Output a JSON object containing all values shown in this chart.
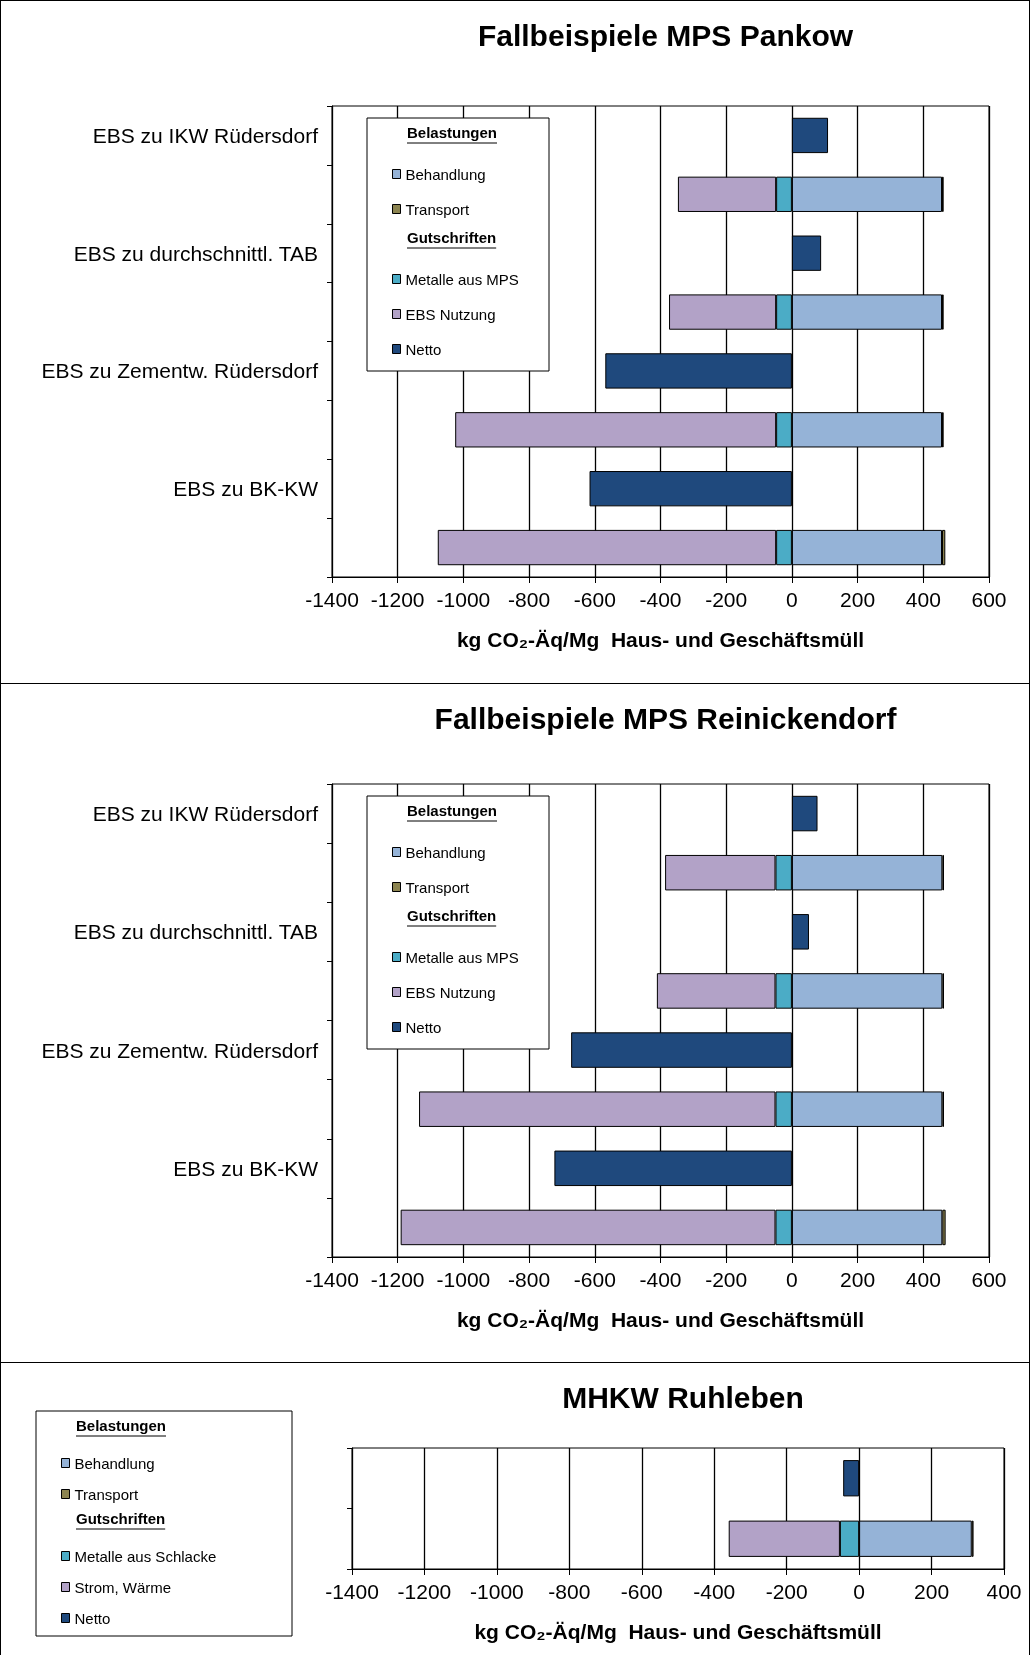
{
  "chart_data": [
    {
      "type": "bar",
      "title": "Fallbeispiele MPS Pankow",
      "xlabel": "kg CO₂-Äq/Mg  Haus- und Geschäftsmüll",
      "orientation": "horizontal",
      "stacked": true,
      "grid": "x",
      "legend": "top left",
      "annotations": [
        "Belastungen",
        "Gutschriften"
      ],
      "categories": [
        "EBS zu IKW Rüdersdorf",
        null,
        "EBS zu durchschnittl. TAB",
        null,
        "EBS zu Zementw. Rüdersdorf",
        null,
        "EBS zu BK-KW",
        null
      ],
      "xlim": [
        -1400,
        600
      ],
      "xticks": [
        -1400,
        -1200,
        -1000,
        -800,
        -600,
        -400,
        -200,
        0,
        200,
        400,
        600
      ],
      "series": [
        {
          "name": "Behandlung",
          "color": "#95b3d7",
          "values": [
            null,
            457,
            null,
            457,
            null,
            457,
            null,
            457
          ]
        },
        {
          "name": "Transport",
          "color": "#8c8450",
          "values": [
            null,
            5,
            null,
            5,
            null,
            5,
            null,
            10
          ]
        },
        {
          "name": "Metalle aus MPS",
          "color": "#4bacc6",
          "values": [
            null,
            -48,
            null,
            -48,
            null,
            -48,
            null,
            -48
          ]
        },
        {
          "name": "EBS Nutzung",
          "color": "#b2a2c7",
          "values": [
            null,
            -299,
            null,
            -326,
            null,
            -977,
            null,
            -1030
          ]
        },
        {
          "name": "Netto",
          "color": "#1f497d",
          "values": [
            110,
            null,
            89,
            null,
            -568,
            null,
            -616,
            null
          ]
        }
      ]
    },
    {
      "type": "bar",
      "title": "Fallbeispiele MPS Reinickendorf",
      "xlabel": "kg CO₂-Äq/Mg  Haus- und Geschäftsmüll",
      "orientation": "horizontal",
      "stacked": true,
      "grid": "x",
      "legend": "top left",
      "annotations": [
        "Belastungen",
        "Gutschriften"
      ],
      "categories": [
        "EBS zu IKW Rüdersdorf",
        null,
        "EBS zu durchschnittl. TAB",
        null,
        "EBS zu Zementw. Rüdersdorf",
        null,
        "EBS zu BK-KW",
        null
      ],
      "xlim": [
        -1400,
        600
      ],
      "xticks": [
        -1400,
        -1200,
        -1000,
        -800,
        -600,
        -400,
        -200,
        0,
        200,
        400,
        600
      ],
      "series": [
        {
          "name": "Behandlung",
          "color": "#95b3d7",
          "values": [
            null,
            458,
            null,
            458,
            null,
            458,
            null,
            458
          ]
        },
        {
          "name": "Transport",
          "color": "#8c8450",
          "values": [
            null,
            5,
            null,
            5,
            null,
            5,
            null,
            10
          ]
        },
        {
          "name": "Metalle aus MPS",
          "color": "#4bacc6",
          "values": [
            null,
            -50,
            null,
            -50,
            null,
            -50,
            null,
            -50
          ]
        },
        {
          "name": "EBS Nutzung",
          "color": "#b2a2c7",
          "values": [
            null,
            -336,
            null,
            -361,
            null,
            -1085,
            null,
            -1141
          ]
        },
        {
          "name": "Netto",
          "color": "#1f497d",
          "values": [
            78,
            null,
            52,
            null,
            -672,
            null,
            -723,
            null
          ]
        }
      ]
    },
    {
      "type": "bar",
      "title": "MHKW Ruhleben",
      "xlabel": "kg CO₂-Äq/Mg  Haus- und Geschäftsmüll",
      "orientation": "horizontal",
      "stacked": true,
      "grid": "x",
      "legend": "left",
      "annotations": [
        "Belastungen",
        "Gutschriften"
      ],
      "categories": [
        null,
        null
      ],
      "xlim": [
        -1400,
        400
      ],
      "xticks": [
        -1400,
        -1200,
        -1000,
        -800,
        -600,
        -400,
        -200,
        0,
        200,
        400
      ],
      "series": [
        {
          "name": "Behandlung",
          "color": "#95b3d7",
          "values": [
            null,
            311
          ]
        },
        {
          "name": "Transport",
          "color": "#8c8450",
          "values": [
            null,
            5
          ]
        },
        {
          "name": "Metalle aus Schlacke",
          "color": "#4bacc6",
          "values": [
            null,
            -53
          ]
        },
        {
          "name": "Strom, Wärme",
          "color": "#b2a2c7",
          "values": [
            null,
            -307
          ]
        },
        {
          "name": "Netto",
          "color": "#1f497d",
          "values": [
            -44,
            null
          ]
        }
      ]
    }
  ]
}
